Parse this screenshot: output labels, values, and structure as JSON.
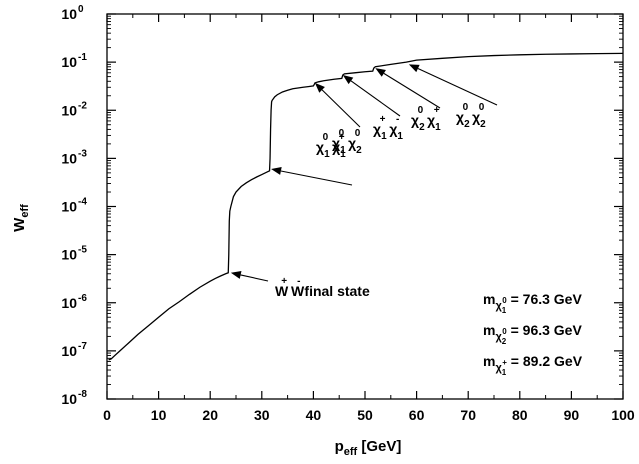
{
  "chart_data": {
    "type": "line",
    "title": "",
    "xlabel": {
      "base": "p",
      "sub": "eff",
      "rest": " [GeV]"
    },
    "ylabel": {
      "base": "W",
      "sub": "eff"
    },
    "xlim": [
      0,
      100
    ],
    "ylim": [
      1e-08,
      1
    ],
    "yscale": "log",
    "grid": false,
    "x_ticks": [
      "0",
      "10",
      "20",
      "30",
      "40",
      "50",
      "60",
      "70",
      "80",
      "90",
      "100"
    ],
    "y_ticks": [
      {
        "base": "10",
        "exp": "0"
      },
      {
        "base": "10",
        "exp": "-1"
      },
      {
        "base": "10",
        "exp": "-2"
      },
      {
        "base": "10",
        "exp": "-3"
      },
      {
        "base": "10",
        "exp": "-4"
      },
      {
        "base": "10",
        "exp": "-5"
      },
      {
        "base": "10",
        "exp": "-6"
      },
      {
        "base": "10",
        "exp": "-7"
      },
      {
        "base": "10",
        "exp": "-8"
      }
    ],
    "series": [
      {
        "x": [
          0.3,
          0.8,
          1.5,
          2.5,
          4,
          6,
          8,
          10,
          12,
          14,
          16,
          18,
          20,
          21,
          22,
          23,
          23.5,
          23.6,
          23.7,
          23.8,
          24,
          24.5,
          25,
          26,
          27,
          28,
          29,
          30,
          31,
          31.5,
          31.6,
          31.7,
          31.8,
          31.9,
          32,
          32.5,
          33,
          34,
          35,
          36,
          37,
          38,
          39,
          40,
          40.2,
          40.3,
          41,
          42,
          44,
          45.5,
          45.7,
          46,
          48,
          50,
          51.5,
          51.7,
          52,
          55,
          58,
          60,
          65,
          70,
          75,
          80,
          85,
          90,
          95,
          100
        ],
        "y": [
          6.5e-08,
          6.8e-08,
          8e-08,
          1e-07,
          1.4e-07,
          2.2e-07,
          3.3e-07,
          5e-07,
          7.5e-07,
          1.05e-06,
          1.5e-06,
          2.1e-06,
          2.8e-06,
          3.2e-06,
          3.6e-06,
          4e-06,
          4.2e-06,
          1e-05,
          5e-05,
          8e-05,
          0.0001,
          0.00016,
          0.0002,
          0.00026,
          0.00031,
          0.00036,
          0.00041,
          0.00046,
          0.00052,
          0.00055,
          0.001,
          0.004,
          0.01,
          0.015,
          0.016,
          0.019,
          0.021,
          0.024,
          0.026,
          0.028,
          0.029,
          0.03,
          0.031,
          0.032,
          0.035,
          0.037,
          0.039,
          0.041,
          0.044,
          0.046,
          0.054,
          0.057,
          0.06,
          0.063,
          0.065,
          0.075,
          0.08,
          0.09,
          0.1,
          0.11,
          0.12,
          0.13,
          0.137,
          0.142,
          0.146,
          0.148,
          0.15,
          0.152
        ]
      }
    ],
    "annotations": [
      {
        "parts": [
          [
            "W",
            "n"
          ],
          [
            "+",
            "sup"
          ],
          [
            " W",
            "n"
          ],
          [
            "-",
            "sup"
          ],
          [
            " final state",
            "n"
          ]
        ],
        "arrow_to": [
          24,
          4.2e-06
        ]
      },
      {
        "parts": [
          [
            "χ",
            "n"
          ],
          [
            "1",
            "sub"
          ],
          [
            "0",
            "sup"
          ],
          [
            " χ",
            "n"
          ],
          [
            "1",
            "sub"
          ],
          [
            "+",
            "sup"
          ]
        ],
        "arrow_to": [
          31.8,
          0.0006
        ]
      },
      {
        "parts": [
          [
            "χ",
            "n"
          ],
          [
            "1",
            "sub"
          ],
          [
            "0",
            "sup"
          ],
          [
            " χ",
            "n"
          ],
          [
            "2",
            "sub"
          ],
          [
            "0",
            "sup"
          ]
        ],
        "arrow_to": [
          40.3,
          0.037
        ]
      },
      {
        "parts": [
          [
            "χ",
            "n"
          ],
          [
            "1",
            "sub"
          ],
          [
            "+",
            "sup"
          ],
          [
            " χ",
            "n"
          ],
          [
            "1",
            "sub"
          ],
          [
            "-",
            "sup"
          ]
        ],
        "arrow_to": [
          45.7,
          0.054
        ]
      },
      {
        "parts": [
          [
            "χ",
            "n"
          ],
          [
            "2",
            "sub"
          ],
          [
            "0",
            "sup"
          ],
          [
            " χ",
            "n"
          ],
          [
            "1",
            "sub"
          ],
          [
            "+",
            "sup"
          ]
        ],
        "arrow_to": [
          52,
          0.075
        ]
      },
      {
        "parts": [
          [
            "χ",
            "n"
          ],
          [
            "2",
            "sub"
          ],
          [
            "0",
            "sup"
          ],
          [
            " χ",
            "n"
          ],
          [
            "2",
            "sub"
          ],
          [
            "0",
            "sup"
          ]
        ],
        "arrow_to": [
          58.5,
          0.09
        ]
      }
    ],
    "mass_labels": [
      {
        "parts": [
          [
            "m",
            "n"
          ],
          [
            "χ",
            "sub"
          ],
          [
            "1",
            "subsub"
          ],
          [
            "0",
            "subsup"
          ],
          [
            " = 76.3 GeV",
            "n"
          ]
        ]
      },
      {
        "parts": [
          [
            "m",
            "n"
          ],
          [
            "χ",
            "sub"
          ],
          [
            "2",
            "subsub"
          ],
          [
            "0",
            "subsup"
          ],
          [
            " = 96.3 GeV",
            "n"
          ]
        ]
      },
      {
        "parts": [
          [
            "m",
            "n"
          ],
          [
            "χ",
            "sub"
          ],
          [
            "1",
            "subsub"
          ],
          [
            "+",
            "subsup"
          ],
          [
            " = 89.2 GeV",
            "n"
          ]
        ]
      }
    ]
  }
}
